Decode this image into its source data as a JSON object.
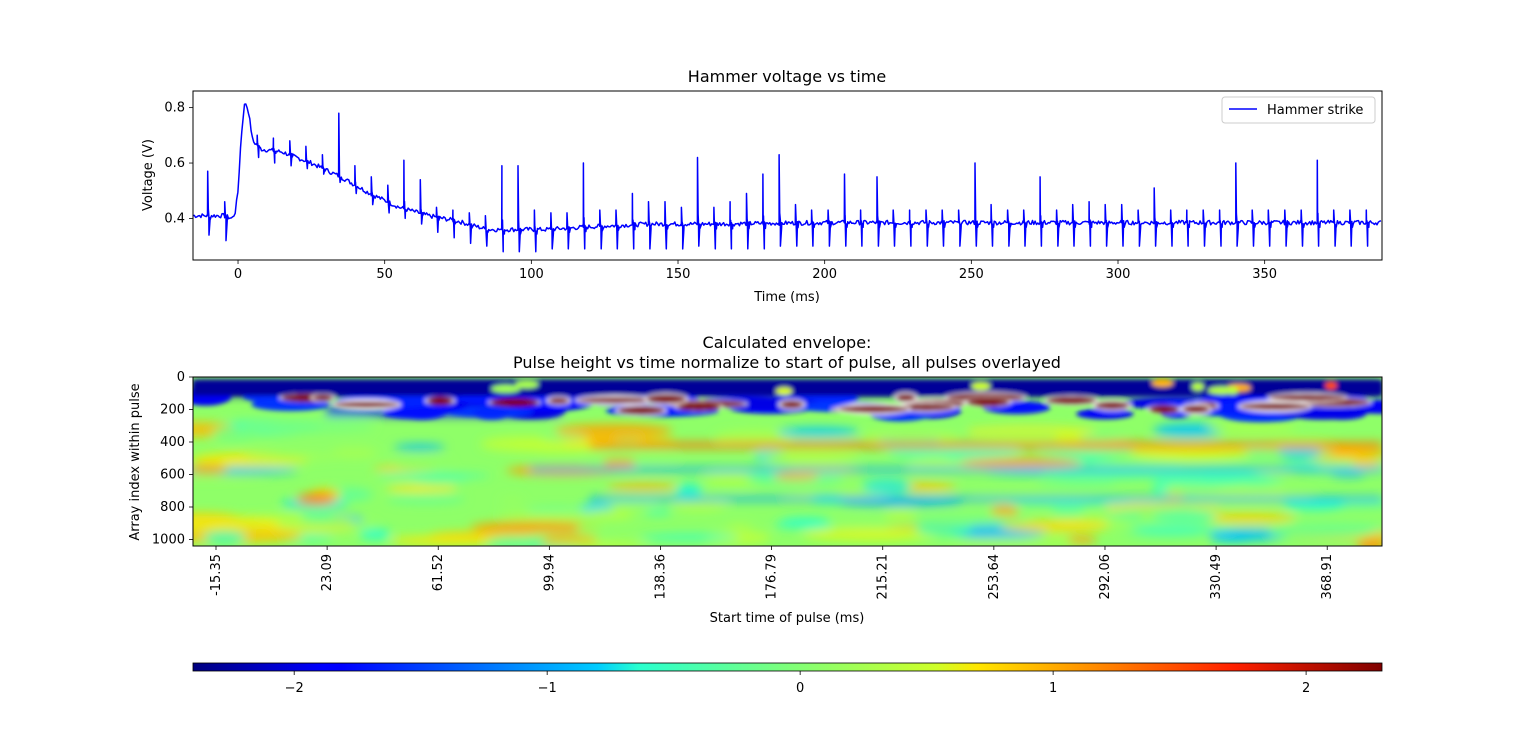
{
  "chart_data": [
    {
      "type": "line",
      "title": "Hammer voltage vs time",
      "xlabel": "Time (ms)",
      "ylabel": "Voltage (V)",
      "xlim": [
        -15.35,
        390
      ],
      "ylim": [
        0.25,
        0.86
      ],
      "xticks": [
        0,
        50,
        100,
        150,
        200,
        250,
        300,
        350
      ],
      "yticks": [
        0.4,
        0.6,
        0.8
      ],
      "ytick_labels": [
        "0.4",
        "0.6",
        "0.8"
      ],
      "grid": false,
      "legend_position": "upper-right",
      "series": [
        {
          "name": "Hammer strike",
          "color": "#0000ff",
          "baseline_points": [
            [
              -15.35,
              0.41
            ],
            [
              -5,
              0.41
            ],
            [
              -2,
              0.4
            ],
            [
              -1,
              0.42
            ],
            [
              0,
              0.5
            ],
            [
              1,
              0.68
            ],
            [
              2,
              0.8
            ],
            [
              2.5,
              0.82
            ],
            [
              3.5,
              0.79
            ],
            [
              5,
              0.68
            ],
            [
              8,
              0.65
            ],
            [
              15,
              0.64
            ],
            [
              25,
              0.6
            ],
            [
              35,
              0.55
            ],
            [
              45,
              0.49
            ],
            [
              55,
              0.44
            ],
            [
              65,
              0.41
            ],
            [
              75,
              0.39
            ],
            [
              85,
              0.36
            ],
            [
              95,
              0.36
            ],
            [
              105,
              0.36
            ],
            [
              120,
              0.37
            ],
            [
              140,
              0.38
            ],
            [
              160,
              0.38
            ],
            [
              200,
              0.385
            ],
            [
              250,
              0.385
            ],
            [
              300,
              0.385
            ],
            [
              350,
              0.385
            ],
            [
              390,
              0.385
            ]
          ],
          "pulses": [
            {
              "t": -10.4,
              "peak": 0.57,
              "trough": 0.34
            },
            {
              "t": -4.6,
              "peak": 0.46,
              "trough": 0.32
            },
            {
              "t": 6.5,
              "peak": 0.7,
              "trough": 0.62
            },
            {
              "t": 12.0,
              "peak": 0.69,
              "trough": 0.6
            },
            {
              "t": 17.6,
              "peak": 0.68,
              "trough": 0.59
            },
            {
              "t": 23.1,
              "peak": 0.66,
              "trough": 0.58
            },
            {
              "t": 28.7,
              "peak": 0.63,
              "trough": 0.56
            },
            {
              "t": 34.3,
              "peak": 0.78,
              "trough": 0.53
            },
            {
              "t": 39.8,
              "peak": 0.59,
              "trough": 0.49
            },
            {
              "t": 45.4,
              "peak": 0.55,
              "trough": 0.45
            },
            {
              "t": 51.0,
              "peak": 0.52,
              "trough": 0.42
            },
            {
              "t": 56.5,
              "peak": 0.61,
              "trough": 0.4
            },
            {
              "t": 62.1,
              "peak": 0.54,
              "trough": 0.38
            },
            {
              "t": 67.6,
              "peak": 0.44,
              "trough": 0.35
            },
            {
              "t": 73.2,
              "peak": 0.43,
              "trough": 0.33
            },
            {
              "t": 78.8,
              "peak": 0.42,
              "trough": 0.31
            },
            {
              "t": 84.3,
              "peak": 0.41,
              "trough": 0.3
            },
            {
              "t": 89.9,
              "peak": 0.59,
              "trough": 0.28
            },
            {
              "t": 95.4,
              "peak": 0.59,
              "trough": 0.28
            },
            {
              "t": 101.0,
              "peak": 0.43,
              "trough": 0.28
            },
            {
              "t": 106.6,
              "peak": 0.42,
              "trough": 0.29
            },
            {
              "t": 112.1,
              "peak": 0.42,
              "trough": 0.29
            },
            {
              "t": 117.7,
              "peak": 0.6,
              "trough": 0.29
            },
            {
              "t": 123.3,
              "peak": 0.43,
              "trough": 0.29
            },
            {
              "t": 128.8,
              "peak": 0.43,
              "trough": 0.29
            },
            {
              "t": 134.4,
              "peak": 0.49,
              "trough": 0.29
            },
            {
              "t": 139.9,
              "peak": 0.46,
              "trough": 0.29
            },
            {
              "t": 145.5,
              "peak": 0.46,
              "trough": 0.29
            },
            {
              "t": 151.1,
              "peak": 0.44,
              "trough": 0.29
            },
            {
              "t": 156.6,
              "peak": 0.62,
              "trough": 0.3
            },
            {
              "t": 162.2,
              "peak": 0.44,
              "trough": 0.29
            },
            {
              "t": 167.7,
              "peak": 0.46,
              "trough": 0.29
            },
            {
              "t": 173.3,
              "peak": 0.49,
              "trough": 0.29
            },
            {
              "t": 178.9,
              "peak": 0.56,
              "trough": 0.29
            },
            {
              "t": 184.4,
              "peak": 0.63,
              "trough": 0.3
            },
            {
              "t": 190.0,
              "peak": 0.45,
              "trough": 0.3
            },
            {
              "t": 195.5,
              "peak": 0.43,
              "trough": 0.3
            },
            {
              "t": 201.1,
              "peak": 0.43,
              "trough": 0.3
            },
            {
              "t": 206.7,
              "peak": 0.56,
              "trough": 0.3
            },
            {
              "t": 212.2,
              "peak": 0.43,
              "trough": 0.3
            },
            {
              "t": 217.8,
              "peak": 0.55,
              "trough": 0.3
            },
            {
              "t": 223.3,
              "peak": 0.43,
              "trough": 0.3
            },
            {
              "t": 228.9,
              "peak": 0.43,
              "trough": 0.3
            },
            {
              "t": 234.5,
              "peak": 0.43,
              "trough": 0.3
            },
            {
              "t": 240.0,
              "peak": 0.43,
              "trough": 0.3
            },
            {
              "t": 245.6,
              "peak": 0.43,
              "trough": 0.3
            },
            {
              "t": 251.2,
              "peak": 0.6,
              "trough": 0.3
            },
            {
              "t": 256.7,
              "peak": 0.45,
              "trough": 0.3
            },
            {
              "t": 262.3,
              "peak": 0.43,
              "trough": 0.3
            },
            {
              "t": 267.8,
              "peak": 0.43,
              "trough": 0.3
            },
            {
              "t": 273.4,
              "peak": 0.55,
              "trough": 0.3
            },
            {
              "t": 279.0,
              "peak": 0.43,
              "trough": 0.3
            },
            {
              "t": 284.5,
              "peak": 0.45,
              "trough": 0.3
            },
            {
              "t": 290.1,
              "peak": 0.46,
              "trough": 0.3
            },
            {
              "t": 295.6,
              "peak": 0.45,
              "trough": 0.3
            },
            {
              "t": 301.2,
              "peak": 0.45,
              "trough": 0.3
            },
            {
              "t": 306.8,
              "peak": 0.43,
              "trough": 0.3
            },
            {
              "t": 312.3,
              "peak": 0.51,
              "trough": 0.3
            },
            {
              "t": 317.9,
              "peak": 0.43,
              "trough": 0.3
            },
            {
              "t": 323.4,
              "peak": 0.43,
              "trough": 0.3
            },
            {
              "t": 329.0,
              "peak": 0.43,
              "trough": 0.3
            },
            {
              "t": 334.6,
              "peak": 0.43,
              "trough": 0.3
            },
            {
              "t": 340.1,
              "peak": 0.6,
              "trough": 0.3
            },
            {
              "t": 345.7,
              "peak": 0.43,
              "trough": 0.3
            },
            {
              "t": 351.2,
              "peak": 0.43,
              "trough": 0.3
            },
            {
              "t": 356.8,
              "peak": 0.43,
              "trough": 0.3
            },
            {
              "t": 362.4,
              "peak": 0.43,
              "trough": 0.3
            },
            {
              "t": 367.9,
              "peak": 0.61,
              "trough": 0.3
            },
            {
              "t": 373.5,
              "peak": 0.43,
              "trough": 0.3
            },
            {
              "t": 379.0,
              "peak": 0.43,
              "trough": 0.3
            },
            {
              "t": 384.6,
              "peak": 0.43,
              "trough": 0.3
            },
            {
              "t": 390.0,
              "peak": 0.46,
              "trough": 0.3
            }
          ]
        }
      ]
    },
    {
      "type": "heatmap",
      "title": "Calculated envelope:",
      "subtitle": "Pulse height vs time normalize to start of pulse, all pulses overlayed",
      "xlabel": "Start time of pulse (ms)",
      "ylabel": "Array index within pulse",
      "xlim": [
        -15.35,
        390
      ],
      "ylim": [
        1040,
        0
      ],
      "xtick_labels": [
        "-15.35",
        "23.09",
        "61.52",
        "99.94",
        "138.36",
        "176.79",
        "215.21",
        "253.64",
        "292.06",
        "330.49",
        "368.91"
      ],
      "yticks": [
        0,
        200,
        400,
        600,
        800,
        1000
      ],
      "colormap": "jet",
      "colorbar": {
        "orientation": "horizontal",
        "vmin": -2.4,
        "vmax": 2.3,
        "ticks": [
          -2,
          -1,
          0,
          1,
          2
        ],
        "tick_labels": [
          "−2",
          "−1",
          "0",
          "1",
          "2"
        ]
      },
      "features": [
        {
          "desc": "dark blue band",
          "y_center": 70,
          "y_halfwidth": 45,
          "value": -2.3,
          "x_from": -15.35,
          "x_to": 390
        },
        {
          "desc": "dark red blobs",
          "y_center": 150,
          "y_halfwidth": 25,
          "value": 2.3
        },
        {
          "desc": "blue band",
          "y_center": 210,
          "y_halfwidth": 30,
          "value": -1.8,
          "x_from": 30,
          "x_to": 110
        },
        {
          "desc": "orange band",
          "y_center": 420,
          "y_halfwidth": 20,
          "value": 1.3,
          "x_from": 120,
          "x_to": 390
        },
        {
          "desc": "blue band",
          "y_center": 570,
          "y_halfwidth": 15,
          "value": -1.0,
          "x_from": 100,
          "x_to": 390
        },
        {
          "desc": "blue band",
          "y_center": 750,
          "y_halfwidth": 15,
          "value": -1.0,
          "x_from": 120,
          "x_to": 390
        }
      ]
    }
  ]
}
